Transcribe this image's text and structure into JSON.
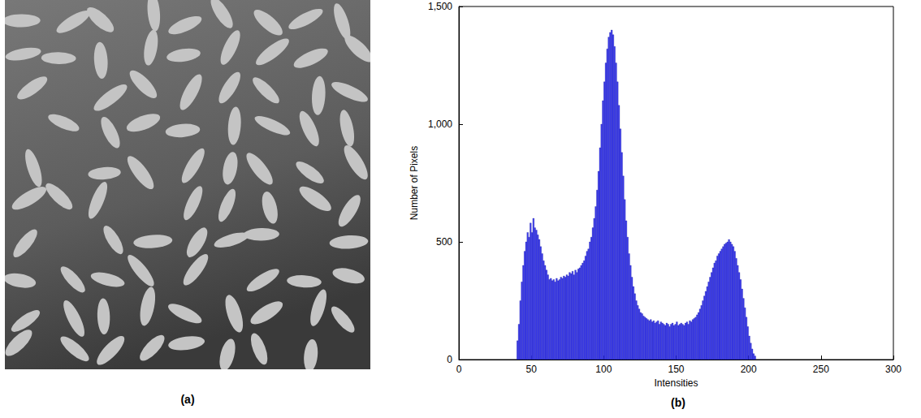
{
  "image": {
    "panel_label": "(a)"
  },
  "chart_data": {
    "type": "histogram",
    "panel_label": "(b)",
    "xlabel": "Intensities",
    "ylabel": "Number of Pixels",
    "bins": [
      40,
      41,
      42,
      43,
      44,
      45,
      46,
      47,
      48,
      49,
      50,
      51,
      52,
      53,
      54,
      55,
      56,
      57,
      58,
      59,
      60,
      61,
      62,
      63,
      64,
      65,
      66,
      67,
      68,
      69,
      70,
      71,
      72,
      73,
      74,
      75,
      76,
      77,
      78,
      79,
      80,
      81,
      82,
      83,
      84,
      85,
      86,
      87,
      88,
      89,
      90,
      91,
      92,
      93,
      94,
      95,
      96,
      97,
      98,
      99,
      100,
      101,
      102,
      103,
      104,
      105,
      106,
      107,
      108,
      109,
      110,
      111,
      112,
      113,
      114,
      115,
      116,
      117,
      118,
      119,
      120,
      121,
      122,
      123,
      124,
      125,
      126,
      127,
      128,
      129,
      130,
      131,
      132,
      133,
      134,
      135,
      136,
      137,
      138,
      139,
      140,
      141,
      142,
      143,
      144,
      145,
      146,
      147,
      148,
      149,
      150,
      151,
      152,
      153,
      154,
      155,
      156,
      157,
      158,
      159,
      160,
      161,
      162,
      163,
      164,
      165,
      166,
      167,
      168,
      169,
      170,
      171,
      172,
      173,
      174,
      175,
      176,
      177,
      178,
      179,
      180,
      181,
      182,
      183,
      184,
      185,
      186,
      187,
      188,
      189,
      190,
      191,
      192,
      193,
      194,
      195,
      196,
      197,
      198,
      199,
      200,
      201,
      202,
      203,
      204,
      205
    ],
    "counts": [
      80,
      150,
      250,
      330,
      400,
      460,
      500,
      540,
      520,
      580,
      540,
      600,
      560,
      550,
      530,
      510,
      480,
      450,
      420,
      400,
      380,
      360,
      340,
      345,
      335,
      340,
      330,
      345,
      335,
      340,
      350,
      345,
      355,
      350,
      360,
      355,
      370,
      365,
      375,
      360,
      380,
      370,
      385,
      390,
      400,
      410,
      420,
      440,
      460,
      470,
      500,
      520,
      560,
      600,
      650,
      720,
      800,
      900,
      1000,
      1100,
      1180,
      1260,
      1320,
      1370,
      1390,
      1400,
      1380,
      1330,
      1260,
      1180,
      1080,
      980,
      880,
      780,
      680,
      590,
      520,
      450,
      400,
      350,
      310,
      280,
      250,
      230,
      215,
      200,
      195,
      185,
      180,
      175,
      170,
      165,
      170,
      160,
      165,
      155,
      160,
      165,
      150,
      160,
      155,
      150,
      145,
      155,
      150,
      140,
      150,
      155,
      145,
      150,
      160,
      145,
      150,
      155,
      150,
      145,
      155,
      160,
      150,
      165,
      160,
      170,
      175,
      180,
      190,
      200,
      215,
      230,
      250,
      270,
      290,
      310,
      330,
      350,
      370,
      390,
      410,
      420,
      440,
      450,
      460,
      470,
      480,
      490,
      495,
      500,
      510,
      500,
      490,
      480,
      460,
      430,
      400,
      370,
      340,
      300,
      260,
      220,
      180,
      140,
      100,
      70,
      45,
      25,
      15
    ],
    "color": "#3b3bf0",
    "xlim": [
      0,
      300
    ],
    "xticks": [
      0,
      50,
      100,
      150,
      200,
      250,
      300
    ],
    "ylim": [
      0,
      1500
    ],
    "yticks": [
      0,
      500,
      1000,
      1500
    ],
    "grid": false
  }
}
